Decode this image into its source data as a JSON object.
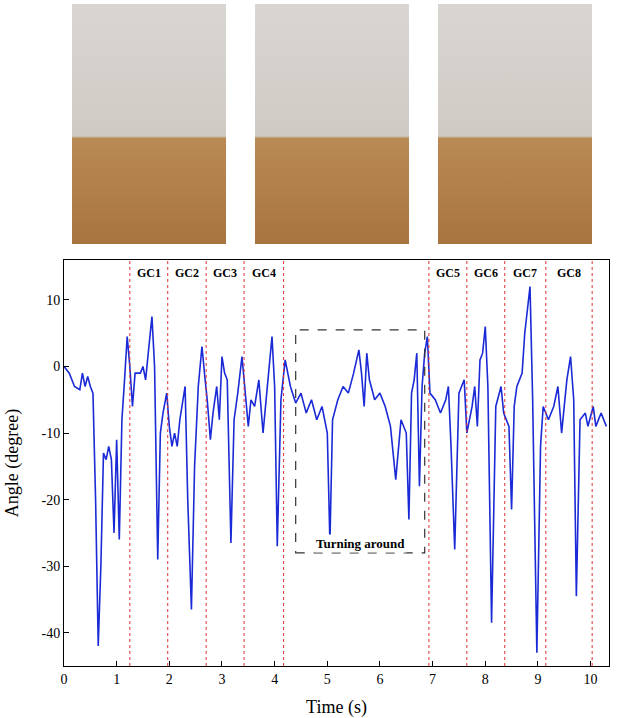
{
  "chart_data": {
    "type": "line",
    "x_label": "Time (s)",
    "y_label": "Angle (degree)",
    "xlim": [
      0,
      10.35
    ],
    "ylim": [
      -45,
      16
    ],
    "xticks": [
      0,
      1,
      2,
      3,
      4,
      5,
      6,
      7,
      8,
      9,
      10
    ],
    "yticks": [
      -40,
      -30,
      -20,
      -10,
      0,
      10
    ],
    "grid": false,
    "series": [
      {
        "name": "Angle",
        "color": "#1a2ad6",
        "x": [
          0,
          0.1,
          0.2,
          0.3,
          0.35,
          0.4,
          0.45,
          0.5,
          0.55,
          0.6,
          0.65,
          0.7,
          0.75,
          0.8,
          0.85,
          0.9,
          0.95,
          1.0,
          1.05,
          1.1,
          1.15,
          1.2,
          1.25,
          1.3,
          1.35,
          1.45,
          1.5,
          1.55,
          1.6,
          1.67,
          1.72,
          1.78,
          1.83,
          1.88,
          1.95,
          2.0,
          2.05,
          2.1,
          2.15,
          2.2,
          2.3,
          2.35,
          2.42,
          2.48,
          2.55,
          2.62,
          2.68,
          2.72,
          2.78,
          2.83,
          2.9,
          2.95,
          3.0,
          3.05,
          3.1,
          3.17,
          3.23,
          3.3,
          3.38,
          3.45,
          3.5,
          3.55,
          3.62,
          3.7,
          3.78,
          3.85,
          3.9,
          3.95,
          4.0,
          4.05,
          4.12,
          4.2,
          4.3,
          4.4,
          4.5,
          4.6,
          4.7,
          4.8,
          4.9,
          5.0,
          5.05,
          5.1,
          5.2,
          5.3,
          5.4,
          5.5,
          5.6,
          5.65,
          5.7,
          5.75,
          5.8,
          5.9,
          6.0,
          6.1,
          6.2,
          6.3,
          6.4,
          6.5,
          6.55,
          6.6,
          6.65,
          6.7,
          6.75,
          6.8,
          6.85,
          6.9,
          6.95,
          7.05,
          7.15,
          7.25,
          7.3,
          7.35,
          7.42,
          7.5,
          7.6,
          7.65,
          7.75,
          7.8,
          7.85,
          7.9,
          7.95,
          8.0,
          8.05,
          8.12,
          8.2,
          8.3,
          8.35,
          8.45,
          8.5,
          8.55,
          8.6,
          8.7,
          8.75,
          8.85,
          8.9,
          8.98,
          9.05,
          9.1,
          9.2,
          9.3,
          9.38,
          9.45,
          9.5,
          9.55,
          9.62,
          9.68,
          9.73,
          9.8,
          9.9,
          9.95,
          10.05,
          10.1,
          10.2,
          10.3
        ],
        "values": [
          0,
          -1,
          -3,
          -3.5,
          -1,
          -3,
          -1.5,
          -3,
          -4,
          -20,
          -42,
          -30,
          -13,
          -14,
          -12,
          -14,
          -25,
          -11,
          -26,
          -8,
          -2,
          4.5,
          0,
          -6,
          -1,
          -1,
          0,
          -2,
          2,
          7.5,
          0,
          -29,
          -10,
          -7,
          -4,
          -9,
          -12,
          -10,
          -12,
          -8,
          -3,
          -20,
          -36.5,
          -15,
          -3,
          3,
          -2,
          -5,
          -11,
          -7,
          -3,
          -8,
          1.5,
          -1,
          -2,
          -26.5,
          -8,
          -4,
          1.5,
          -4,
          -9,
          -5,
          -6,
          -2,
          -10,
          -4,
          0,
          4.5,
          -3,
          -27,
          -5,
          1,
          -3,
          -5.5,
          -4,
          -7,
          -5,
          -8,
          -6,
          -10,
          -26.5,
          -8,
          -5,
          -3,
          -4,
          -1,
          2.5,
          -1,
          -6,
          2,
          -2,
          -5,
          -4,
          -6,
          -9,
          -17,
          -8,
          -10,
          -23,
          -4,
          -2,
          2,
          -18,
          -3,
          2,
          4.5,
          -4,
          -5,
          -7,
          -5,
          -3,
          -12,
          -27.5,
          -4,
          -2,
          -10,
          -6,
          -3,
          -9,
          1,
          2,
          6,
          -3,
          -38.5,
          -6,
          -3,
          -7,
          -9,
          -21.5,
          -6,
          -3,
          -1,
          5,
          12,
          -5,
          -43,
          -12,
          -6,
          -8,
          -6,
          -3,
          -10,
          -6,
          -2,
          1.5,
          -5,
          -34.5,
          -8,
          -7,
          -9,
          -6,
          -9,
          -7,
          -9
        ]
      }
    ],
    "boundaries": {
      "color": "#e03030",
      "line_style": "dot",
      "x": [
        1.25,
        1.97,
        2.7,
        3.42,
        4.17,
        6.93,
        7.65,
        8.37,
        9.15,
        10.03
      ]
    },
    "annotations": [
      {
        "text": "GC1",
        "x": 1.61,
        "y": 14
      },
      {
        "text": "GC2",
        "x": 2.33,
        "y": 14
      },
      {
        "text": "GC3",
        "x": 3.06,
        "y": 14
      },
      {
        "text": "GC4",
        "x": 3.8,
        "y": 14
      },
      {
        "text": "GC5",
        "x": 7.29,
        "y": 14
      },
      {
        "text": "GC6",
        "x": 8.01,
        "y": 14
      },
      {
        "text": "GC7",
        "x": 8.76,
        "y": 14
      },
      {
        "text": "GC8",
        "x": 9.59,
        "y": 14
      }
    ],
    "box": {
      "text": "Turning around",
      "x0": 4.4,
      "x1": 6.85,
      "y0": -28,
      "y1": 5.5,
      "line_style": "dash",
      "color": "#333333"
    }
  }
}
